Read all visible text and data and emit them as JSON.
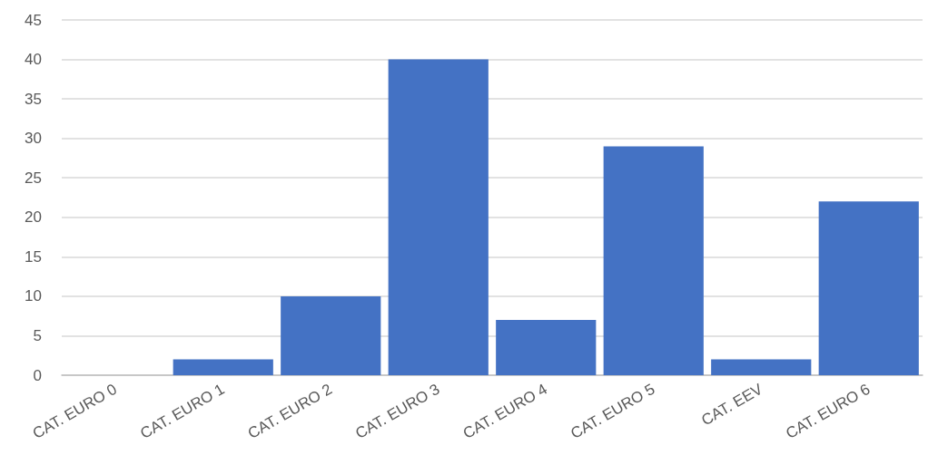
{
  "chart_data": {
    "type": "bar",
    "categories": [
      "CAT. EURO 0",
      "CAT. EURO 1",
      "CAT. EURO 2",
      "CAT. EURO 3",
      "CAT. EURO 4",
      "CAT. EURO 5",
      "CAT. EEV",
      "CAT. EURO 6"
    ],
    "values": [
      0,
      2,
      10,
      40,
      7,
      29,
      2,
      22
    ],
    "color": "#4472c4",
    "ylim": [
      0,
      45
    ],
    "yticks": [
      0,
      5,
      10,
      15,
      20,
      25,
      30,
      35,
      40,
      45
    ],
    "grid": "y"
  }
}
